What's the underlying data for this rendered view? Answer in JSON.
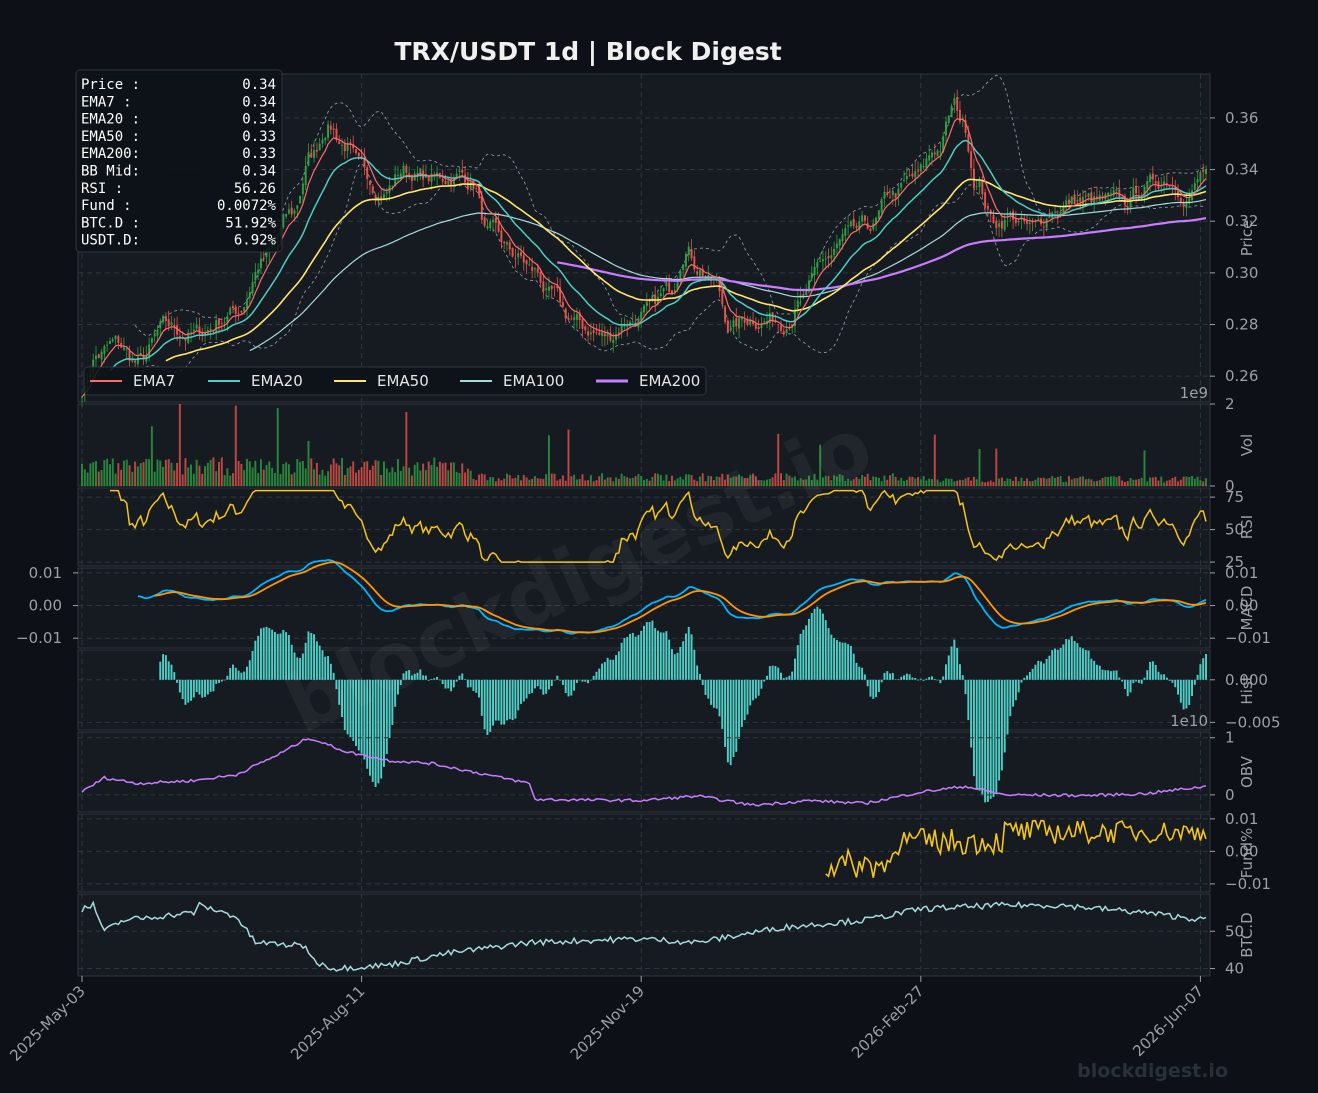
{
  "title": "TRX/USDT  1d  |  Block Digest",
  "watermark": "blockdigest.io",
  "footer_brand": "blockdigest.io",
  "colors": {
    "background": "#0d1117",
    "panel": "#161b22",
    "up": "#2ea043",
    "down": "#e5534b",
    "ema7": "#ff6b6b",
    "ema20": "#4ecdc4",
    "ema50": "#ffe66d",
    "ema100": "#a8dadc",
    "ema200": "#c77dff",
    "rsi": "#f5c518",
    "macd": "#00b4ff",
    "signal": "#ff9500",
    "hist": "#4ecdc4",
    "obv": "#c77dff",
    "funding": "#f5c518",
    "btcd": "#a8dadc"
  },
  "info_box": [
    {
      "label": "Price :",
      "value": "0.34"
    },
    {
      "label": "EMA7  :",
      "value": "0.34"
    },
    {
      "label": "EMA20 :",
      "value": "0.34"
    },
    {
      "label": "EMA50 :",
      "value": "0.33"
    },
    {
      "label": "EMA200:",
      "value": "0.33"
    },
    {
      "label": "BB Mid:",
      "value": "0.34"
    },
    {
      "label": "RSI   :",
      "value": "56.26"
    },
    {
      "label": "Fund  :",
      "value": "0.0072%"
    },
    {
      "label": "BTC.D :",
      "value": "51.92%"
    },
    {
      "label": "USDT.D:",
      "value": "6.92%"
    }
  ],
  "legend": [
    "EMA7",
    "EMA20",
    "EMA50",
    "EMA100",
    "EMA200"
  ],
  "chart_data": {
    "type": "line",
    "x_ticks": [
      "2025-May-03",
      "2025-Aug-11",
      "2025-Nov-19",
      "2026-Feb-27",
      "2026-Jun-07"
    ],
    "days": 402,
    "price_anchors": [
      [
        0,
        0.255
      ],
      [
        5,
        0.268
      ],
      [
        12,
        0.272
      ],
      [
        20,
        0.265
      ],
      [
        30,
        0.278
      ],
      [
        40,
        0.276
      ],
      [
        55,
        0.285
      ],
      [
        65,
        0.305
      ],
      [
        75,
        0.322
      ],
      [
        82,
        0.345
      ],
      [
        88,
        0.358
      ],
      [
        94,
        0.35
      ],
      [
        100,
        0.338
      ],
      [
        108,
        0.332
      ],
      [
        115,
        0.34
      ],
      [
        125,
        0.336
      ],
      [
        135,
        0.338
      ],
      [
        140,
        0.335
      ],
      [
        145,
        0.315
      ],
      [
        155,
        0.306
      ],
      [
        162,
        0.3
      ],
      [
        168,
        0.29
      ],
      [
        174,
        0.282
      ],
      [
        180,
        0.278
      ],
      [
        188,
        0.275
      ],
      [
        195,
        0.282
      ],
      [
        202,
        0.284
      ],
      [
        210,
        0.292
      ],
      [
        216,
        0.312
      ],
      [
        220,
        0.304
      ],
      [
        226,
        0.296
      ],
      [
        232,
        0.279
      ],
      [
        240,
        0.283
      ],
      [
        250,
        0.282
      ],
      [
        258,
        0.29
      ],
      [
        266,
        0.305
      ],
      [
        274,
        0.313
      ],
      [
        282,
        0.317
      ],
      [
        290,
        0.33
      ],
      [
        298,
        0.336
      ],
      [
        306,
        0.348
      ],
      [
        312,
        0.364
      ],
      [
        315,
        0.358
      ],
      [
        320,
        0.336
      ],
      [
        326,
        0.32
      ],
      [
        332,
        0.322
      ],
      [
        340,
        0.316
      ],
      [
        348,
        0.325
      ],
      [
        356,
        0.328
      ],
      [
        364,
        0.327
      ],
      [
        372,
        0.326
      ],
      [
        380,
        0.333
      ],
      [
        388,
        0.337
      ],
      [
        396,
        0.332
      ],
      [
        402,
        0.339
      ]
    ],
    "price_ylim": [
      0.25,
      0.377
    ],
    "price_ticks": [
      0.26,
      0.28,
      0.3,
      0.32,
      0.34,
      0.36
    ],
    "price_ylabel": "Price",
    "volume": {
      "ylabel": "Vol",
      "ticks": [
        0,
        2
      ],
      "exponent": "1e9",
      "ylim": [
        0,
        2.0
      ]
    },
    "rsi": {
      "ylabel": "RSI",
      "ticks": [
        25,
        50,
        75
      ],
      "ylim": [
        22,
        82
      ],
      "last": 56.26
    },
    "macd": {
      "ylabel": "MACD",
      "ticks": [
        -0.01,
        0.0,
        0.01
      ],
      "tick_labels": [
        "−0.01",
        "0.00",
        "0.01"
      ],
      "ylim": [
        -0.013,
        0.0115
      ]
    },
    "hist": {
      "ylabel": "Hist",
      "ticks": [
        0.0,
        -0.005
      ],
      "tick_labels": [
        "0.000",
        "−0.005"
      ],
      "ylim": [
        -0.0059,
        0.0035
      ]
    },
    "obv": {
      "ylabel": "OBV",
      "ticks": [
        0,
        1
      ],
      "exponent": "1e10",
      "ylim": [
        -0.3,
        1.1
      ]
    },
    "funding": {
      "ylabel": "Fund%",
      "ticks": [
        -0.01,
        0.0,
        0.01
      ],
      "tick_labels": [
        "−0.01",
        "0.00",
        "0.01"
      ],
      "ylim": [
        -0.0125,
        0.0115
      ],
      "start_day": 266
    },
    "btcd": {
      "ylabel": "BTC.D",
      "ticks": [
        40,
        50
      ],
      "ylim": [
        38,
        60
      ]
    }
  }
}
